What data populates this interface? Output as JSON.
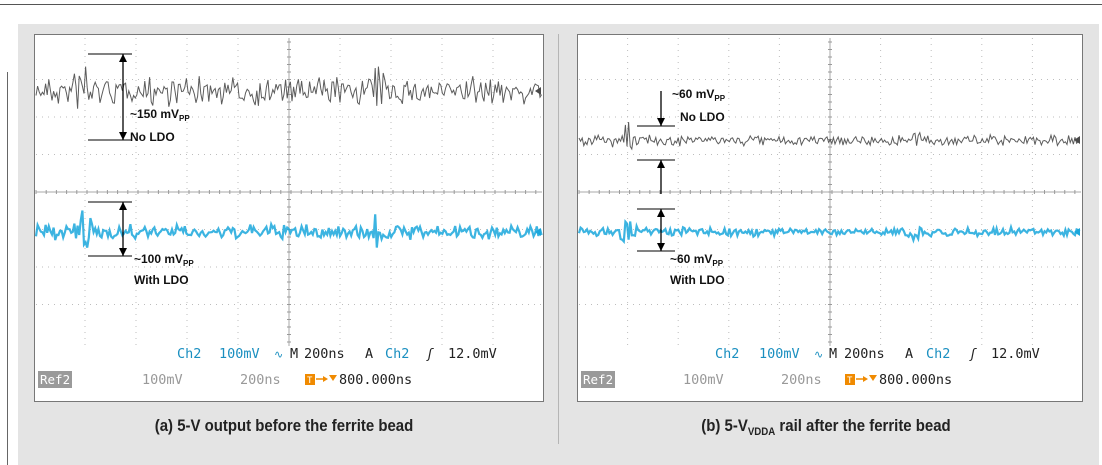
{
  "colors": {
    "ch1": "#4a4a4a",
    "ch2": "#1aa7dc",
    "ch2_text": "#1a8fc0",
    "trigger": "#f08a00",
    "ref_bg": "#9a9a9a",
    "grid": "#bdbdbd"
  },
  "panels": [
    {
      "caption_pre": "(a) 5-V output before the ferrite bead",
      "caption_sub": "",
      "caption_post": "",
      "readout": {
        "ch": "Ch2",
        "volts": "100mV",
        "coupling": "∿",
        "m_label": "M",
        "timebase": "200ns",
        "mode": "A",
        "trig_ch": "Ch2",
        "edge": "ʃ",
        "level": "12.0mV",
        "ref": "Ref2",
        "ref_volts": "100mV",
        "ref_time": "200ns",
        "trig_pos": "800.000ns"
      },
      "annotations": [
        {
          "value": "~150 mV",
          "unit": "PP",
          "note": "No LDO"
        },
        {
          "value": "~100 mV",
          "unit": "PP",
          "note": "With LDO"
        }
      ]
    },
    {
      "caption_pre": "(b) 5-V",
      "caption_sub": "VDDA",
      "caption_post": " rail after the ferrite bead",
      "readout": {
        "ch": "Ch2",
        "volts": "100mV",
        "coupling": "∿",
        "m_label": "M",
        "timebase": "200ns",
        "mode": "A",
        "trig_ch": "Ch2",
        "edge": "ʃ",
        "level": "12.0mV",
        "ref": "Ref2",
        "ref_volts": "100mV",
        "ref_time": "200ns",
        "trig_pos": "800.000ns"
      },
      "annotations": [
        {
          "value": "~60 mV",
          "unit": "PP",
          "note": "No LDO"
        },
        {
          "value": "~60 mV",
          "unit": "PP",
          "note": "With LDO"
        }
      ]
    }
  ],
  "chart_data": [
    {
      "type": "line",
      "title": "(a) 5-V output before the ferrite bead",
      "x_unit": "ns",
      "xlim": [
        0,
        2000
      ],
      "x_div": 200,
      "y_unit": "mV",
      "y_div": 100,
      "grid": true,
      "series": [
        {
          "name": "No LDO",
          "color": "#4a4a4a",
          "p2p_mV": 150,
          "spikes_ns": [
            200,
            1340
          ]
        },
        {
          "name": "With LDO",
          "color": "#1aa7dc",
          "p2p_mV": 100,
          "spikes_ns": [
            200,
            1340
          ]
        }
      ]
    },
    {
      "type": "line",
      "title": "(b) 5-VVDDA rail after the ferrite bead",
      "x_unit": "ns",
      "xlim": [
        0,
        2000
      ],
      "x_div": 200,
      "y_unit": "mV",
      "y_div": 100,
      "grid": true,
      "series": [
        {
          "name": "No LDO",
          "color": "#4a4a4a",
          "p2p_mV": 60,
          "spikes_ns": [
            200,
            1320
          ]
        },
        {
          "name": "With LDO",
          "color": "#1aa7dc",
          "p2p_mV": 60,
          "spikes_ns": [
            200,
            1320
          ]
        }
      ]
    }
  ]
}
